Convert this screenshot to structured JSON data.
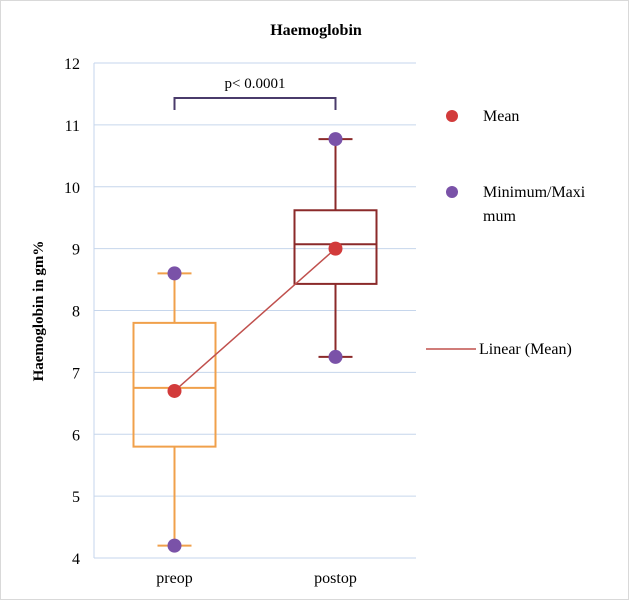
{
  "chart_data": {
    "type": "box",
    "title": "Haemoglobin",
    "xlabel": "",
    "ylabel": "Haemoglobin in gm%",
    "ylim": [
      4,
      12
    ],
    "yticks": [
      4,
      5,
      6,
      7,
      8,
      9,
      10,
      11,
      12
    ],
    "categories": [
      "preop",
      "postop"
    ],
    "boxes": [
      {
        "category": "preop",
        "min": 4.2,
        "q1": 5.8,
        "median": 6.75,
        "q3": 7.8,
        "max": 8.6,
        "mean": 6.7,
        "color": "#f0a04b"
      },
      {
        "category": "postop",
        "min": 7.25,
        "q1": 8.43,
        "median": 9.07,
        "q3": 9.62,
        "max": 10.77,
        "mean": 9.0,
        "color": "#8b2a2a"
      }
    ],
    "mean_color": "#d23b3b",
    "minmax_color": "#7a52a8",
    "trend_color": "#c0504d",
    "annotation": {
      "text": "p< 0.0001",
      "bracket_color": "#4a3b6b"
    },
    "legend": {
      "placement": "right",
      "items": [
        {
          "label": "Mean",
          "marker": "circle",
          "color": "#d23b3b"
        },
        {
          "label": "Minimum/Maxi",
          "label2": "mum",
          "marker": "circle",
          "color": "#7a52a8"
        },
        {
          "label": "Linear (Mean)",
          "marker": "line",
          "color": "#c0504d"
        }
      ]
    },
    "grid": true
  }
}
